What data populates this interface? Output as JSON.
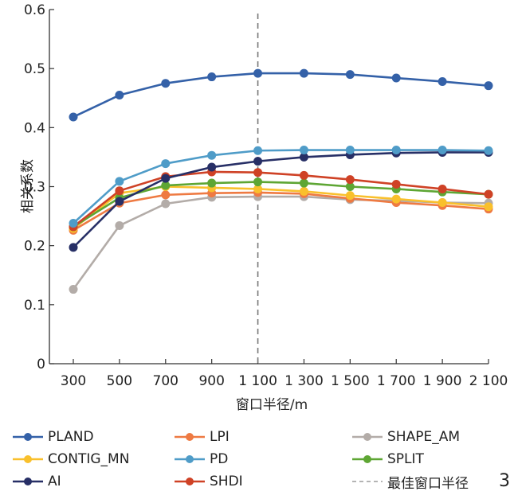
{
  "chart_data": {
    "type": "line",
    "title": "",
    "xlabel": "窗口半径/m",
    "ylabel": "相关系数",
    "x": [
      300,
      500,
      700,
      900,
      1100,
      1300,
      1500,
      1700,
      1900,
      2100
    ],
    "x_tick_labels": [
      "300",
      "500",
      "700",
      "900",
      "1 100",
      "1 300",
      "1 500",
      "1 700",
      "1 900",
      "2 100"
    ],
    "ylim": [
      0,
      0.6
    ],
    "y_ticks": [
      0,
      0.1,
      0.2,
      0.3,
      0.4,
      0.5,
      0.6
    ],
    "y_tick_labels": [
      "0",
      "0.1",
      "0.2",
      "0.3",
      "0.4",
      "0.5",
      "0.6"
    ],
    "grid": false,
    "legend_position": "bottom",
    "reference_line": {
      "x": 1100,
      "label": "最佳窗口半径",
      "color": "#777777",
      "style": "dashed"
    },
    "series": [
      {
        "name": "PLAND",
        "color": "#3461a8",
        "values": [
          0.418,
          0.455,
          0.475,
          0.486,
          0.492,
          0.492,
          0.49,
          0.484,
          0.478,
          0.471
        ]
      },
      {
        "name": "PD",
        "color": "#4f9cc8",
        "values": [
          0.238,
          0.309,
          0.339,
          0.353,
          0.361,
          0.362,
          0.362,
          0.362,
          0.362,
          0.361
        ]
      },
      {
        "name": "AI",
        "color": "#272f66",
        "values": [
          0.197,
          0.275,
          0.314,
          0.333,
          0.343,
          0.35,
          0.354,
          0.357,
          0.358,
          0.358
        ]
      },
      {
        "name": "SHDI",
        "color": "#cf4226",
        "values": [
          0.232,
          0.293,
          0.317,
          0.325,
          0.324,
          0.319,
          0.312,
          0.304,
          0.296,
          0.287
        ]
      },
      {
        "name": "SPLIT",
        "color": "#5ea634",
        "values": [
          0.232,
          0.281,
          0.302,
          0.306,
          0.308,
          0.306,
          0.3,
          0.296,
          0.291,
          0.287
        ]
      },
      {
        "name": "CONTIG_MN",
        "color": "#f9c02c",
        "values": [
          0.229,
          0.289,
          0.3,
          0.298,
          0.296,
          0.292,
          0.285,
          0.279,
          0.273,
          0.266
        ]
      },
      {
        "name": "LPI",
        "color": "#ee7a42",
        "values": [
          0.226,
          0.272,
          0.286,
          0.289,
          0.29,
          0.288,
          0.28,
          0.273,
          0.268,
          0.262
        ]
      },
      {
        "name": "SHAPE_AM",
        "color": "#b3aca8",
        "values": [
          0.126,
          0.234,
          0.271,
          0.282,
          0.283,
          0.283,
          0.278,
          0.276,
          0.273,
          0.272
        ]
      }
    ],
    "legend_order": [
      "PLAND",
      "LPI",
      "SHAPE_AM",
      "CONTIG_MN",
      "PD",
      "SPLIT",
      "AI",
      "SHDI"
    ]
  },
  "figure_number": "3"
}
